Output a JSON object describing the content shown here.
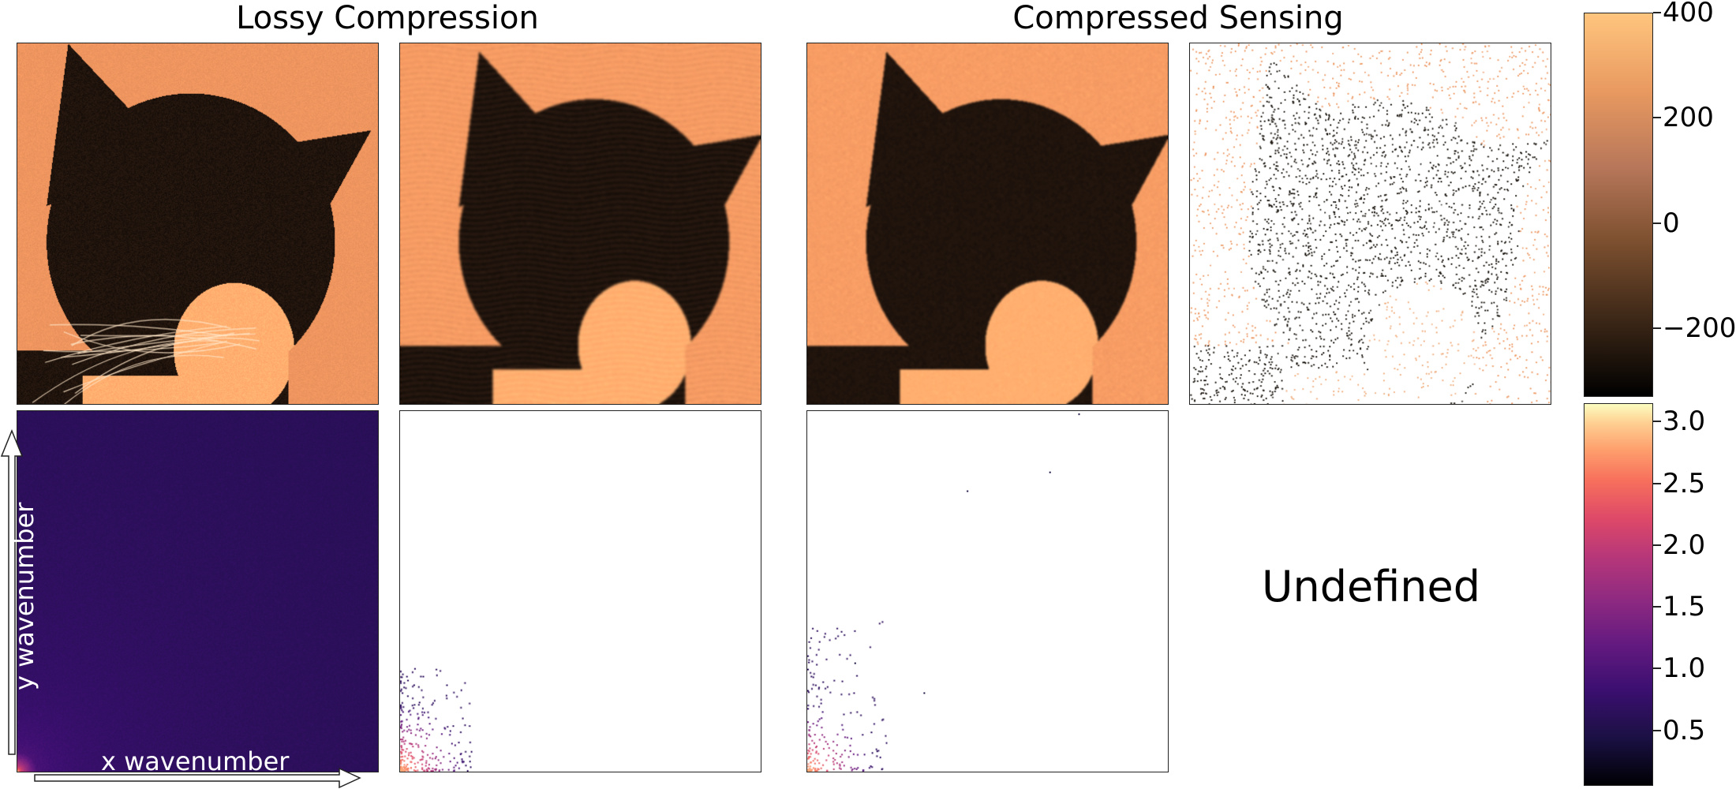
{
  "chart_data": {
    "type": "heatmap",
    "column_titles": [
      "Lossy Compression",
      "Compressed Sensing"
    ],
    "undefined_text": "Undefined",
    "axis_labels": {
      "x": "x wavenumber",
      "y": "y wavenumber"
    },
    "top_colorbar": {
      "colormap": "copper",
      "ticks": [
        400,
        200,
        0,
        -200
      ],
      "tick_labels": [
        "400",
        "200",
        "0",
        "−200"
      ],
      "range": [
        -330,
        400
      ]
    },
    "bottom_colorbar": {
      "colormap": "magma",
      "ticks": [
        3.0,
        2.5,
        2.0,
        1.5,
        1.0,
        0.5
      ],
      "tick_labels": [
        "3.0",
        "2.5",
        "2.0",
        "1.5",
        "1.0",
        "0.5"
      ],
      "range": [
        0.05,
        3.15
      ]
    }
  }
}
